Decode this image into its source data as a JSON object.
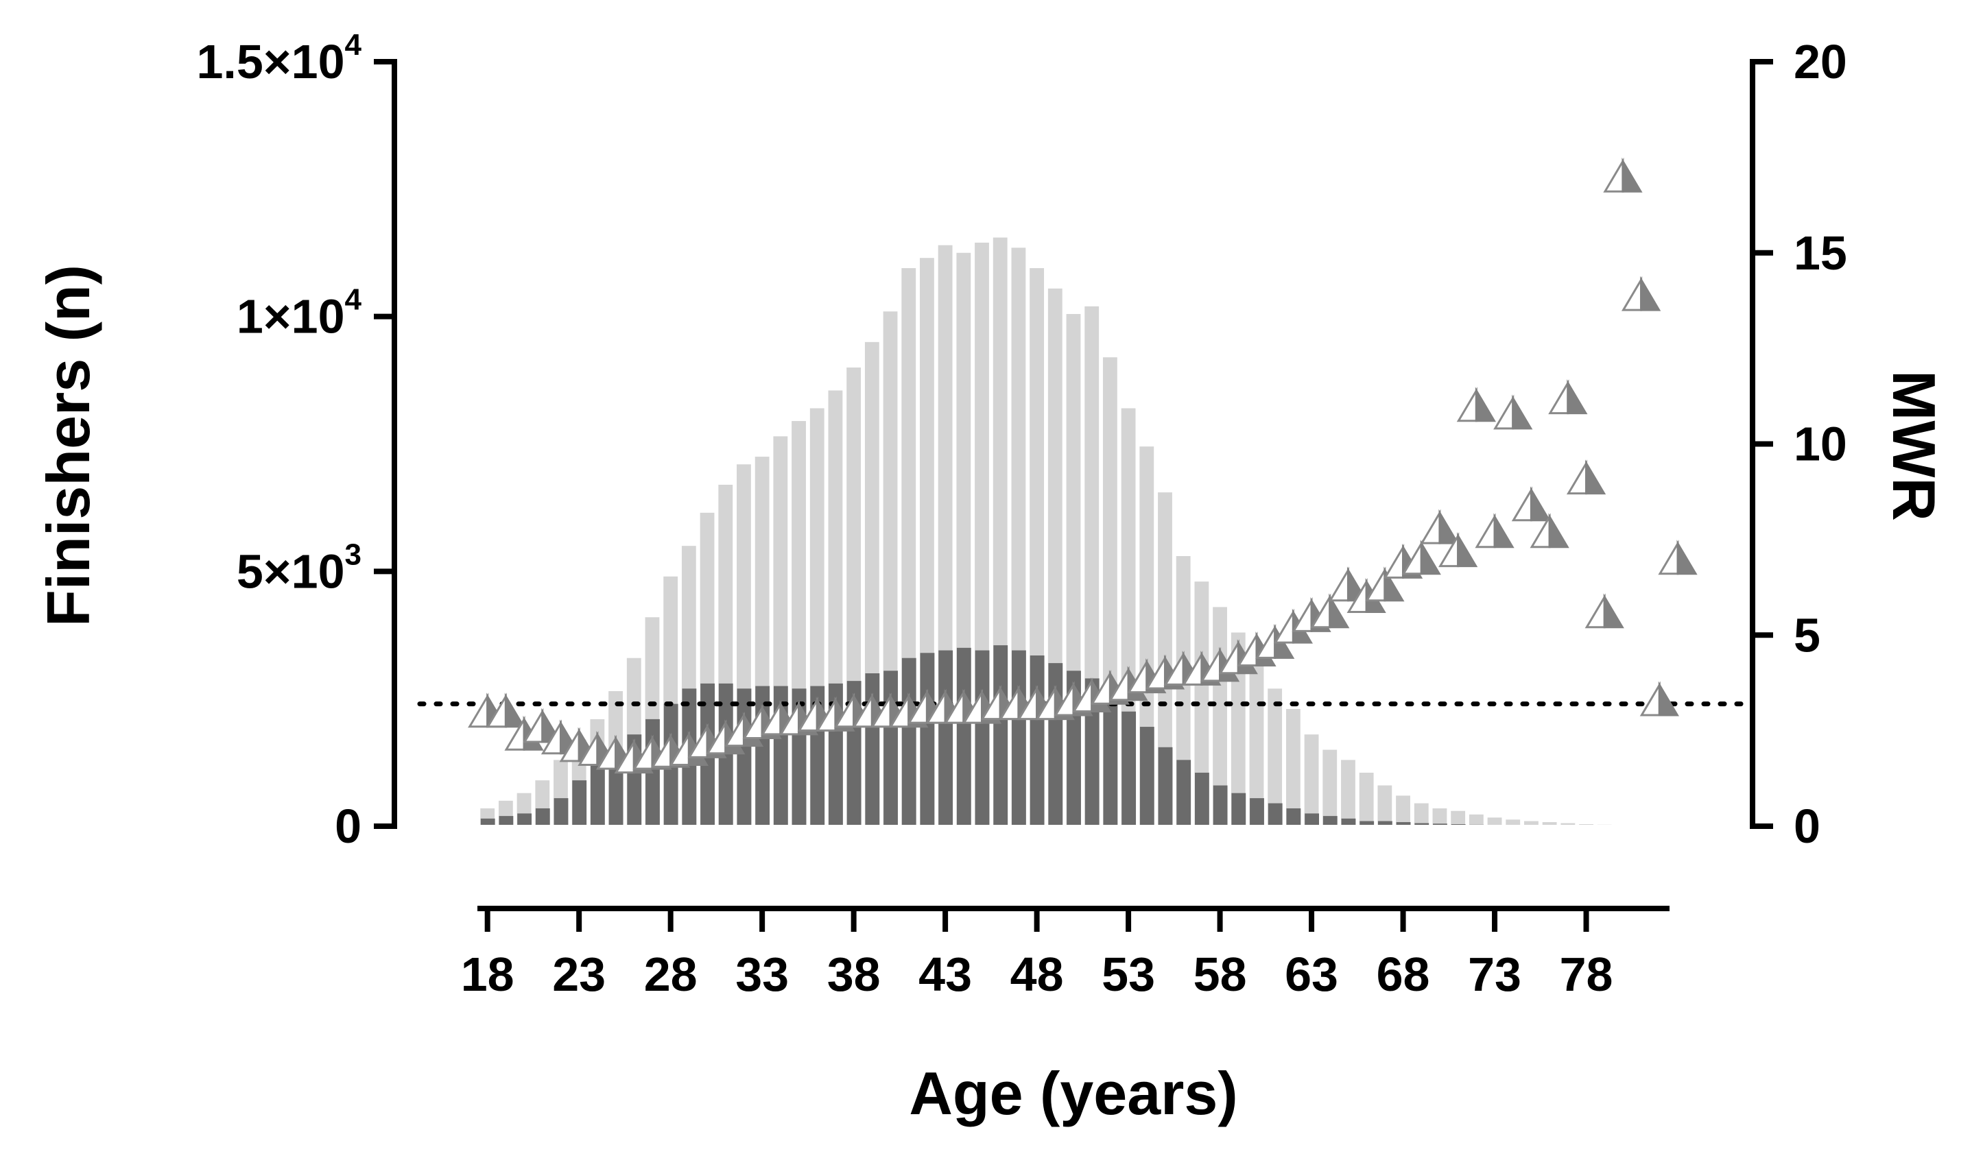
{
  "chart_data": {
    "type": "bar",
    "x": [
      18,
      19,
      20,
      21,
      22,
      23,
      24,
      25,
      26,
      27,
      28,
      29,
      30,
      31,
      32,
      33,
      34,
      35,
      36,
      37,
      38,
      39,
      40,
      41,
      42,
      43,
      44,
      45,
      46,
      47,
      48,
      49,
      50,
      51,
      52,
      53,
      54,
      55,
      56,
      57,
      58,
      59,
      60,
      61,
      62,
      63,
      64,
      65,
      66,
      67,
      68,
      69,
      70,
      71,
      72,
      73,
      74,
      75,
      76,
      77,
      78,
      79,
      80,
      81,
      82
    ],
    "xlabel": "Age (years)",
    "x_tick_labels": [
      "18",
      "23",
      "28",
      "33",
      "38",
      "43",
      "48",
      "53",
      "58",
      "63",
      "68",
      "73",
      "78"
    ],
    "x_tick_values": [
      18,
      23,
      28,
      33,
      38,
      43,
      48,
      53,
      58,
      63,
      68,
      73,
      78
    ],
    "xlim": [
      17.6,
      82.4
    ],
    "ylabel_left": "Finishers (n)",
    "ylim_left": [
      0,
      15000
    ],
    "y_ticks_left": [
      {
        "value": 0,
        "mantissa": "0",
        "exponent": ""
      },
      {
        "value": 5000,
        "mantissa": "5×10",
        "exponent": "3"
      },
      {
        "value": 10000,
        "mantissa": "1×10",
        "exponent": "4"
      },
      {
        "value": 15000,
        "mantissa": "1.5×10",
        "exponent": "4"
      }
    ],
    "ylabel_right": "MWR",
    "ylim_right": [
      0,
      20
    ],
    "y_ticks_right": [
      "0",
      "5",
      "10",
      "15",
      "20"
    ],
    "reference_line_mwr": 3.2,
    "series": [
      {
        "axis": "left",
        "color": "#d4d4d4",
        "values": [
          350,
          500,
          650,
          900,
          1300,
          1700,
          2100,
          2650,
          3300,
          4100,
          4900,
          5500,
          6150,
          6700,
          7100,
          7250,
          7650,
          7950,
          8200,
          8550,
          9000,
          9500,
          10100,
          10950,
          11150,
          11400,
          11250,
          11450,
          11550,
          11350,
          10950,
          10550,
          10050,
          10200,
          9200,
          8200,
          7450,
          6550,
          5300,
          4800,
          4300,
          3800,
          3350,
          2700,
          2300,
          1800,
          1500,
          1300,
          1050,
          800,
          600,
          450,
          350,
          300,
          230,
          170,
          130,
          100,
          80,
          60,
          40,
          30,
          20,
          10,
          10
        ],
        "mark": "wide"
      },
      {
        "axis": "left",
        "color": "#6b6b6b",
        "values": [
          150,
          200,
          250,
          350,
          550,
          900,
          1250,
          1450,
          1800,
          2100,
          2400,
          2700,
          2800,
          2800,
          2700,
          2750,
          2750,
          2700,
          2750,
          2800,
          2850,
          3000,
          3050,
          3300,
          3400,
          3450,
          3500,
          3450,
          3550,
          3450,
          3350,
          3200,
          3050,
          2900,
          2550,
          2250,
          1950,
          1550,
          1300,
          1050,
          800,
          650,
          550,
          450,
          350,
          250,
          200,
          150,
          100,
          100,
          80,
          60,
          50,
          40,
          30,
          20,
          20,
          15,
          10,
          10,
          8,
          5,
          5,
          3,
          3
        ],
        "mark": "narrow"
      },
      {
        "axis": "right",
        "type": "scatter",
        "marker": "half-shaded-triangle",
        "points": [
          [
            18,
            3.0
          ],
          [
            19,
            3.0
          ],
          [
            20,
            2.4
          ],
          [
            21,
            2.6
          ],
          [
            22,
            2.3
          ],
          [
            23,
            2.1
          ],
          [
            24,
            2.0
          ],
          [
            25,
            1.9
          ],
          [
            26,
            1.8
          ],
          [
            27,
            1.9
          ],
          [
            28,
            1.95
          ],
          [
            29,
            2.0
          ],
          [
            30,
            2.2
          ],
          [
            31,
            2.3
          ],
          [
            32,
            2.5
          ],
          [
            33,
            2.7
          ],
          [
            34,
            2.8
          ],
          [
            35,
            2.8
          ],
          [
            36,
            2.9
          ],
          [
            37,
            2.9
          ],
          [
            38,
            3.0
          ],
          [
            39,
            3.0
          ],
          [
            40,
            3.0
          ],
          [
            41,
            3.0
          ],
          [
            42,
            3.1
          ],
          [
            43,
            3.1
          ],
          [
            44,
            3.1
          ],
          [
            45,
            3.1
          ],
          [
            46,
            3.2
          ],
          [
            47,
            3.2
          ],
          [
            48,
            3.2
          ],
          [
            49,
            3.2
          ],
          [
            50,
            3.3
          ],
          [
            51,
            3.4
          ],
          [
            52,
            3.6
          ],
          [
            53,
            3.7
          ],
          [
            54,
            3.9
          ],
          [
            55,
            4.0
          ],
          [
            56,
            4.1
          ],
          [
            57,
            4.1
          ],
          [
            58,
            4.2
          ],
          [
            59,
            4.4
          ],
          [
            60,
            4.6
          ],
          [
            61,
            4.8
          ],
          [
            62,
            5.2
          ],
          [
            63,
            5.5
          ],
          [
            64,
            5.6
          ],
          [
            65,
            6.3
          ],
          [
            66,
            6.0
          ],
          [
            67,
            6.3
          ],
          [
            68,
            6.9
          ],
          [
            69,
            7.0
          ],
          [
            70,
            7.8
          ],
          [
            71,
            7.2
          ],
          [
            72,
            11.0
          ],
          [
            73,
            7.7
          ],
          [
            74,
            10.8
          ],
          [
            75,
            8.4
          ],
          [
            76,
            7.7
          ],
          [
            77,
            11.2
          ],
          [
            78,
            9.1
          ],
          [
            79,
            5.6
          ],
          [
            80,
            17.0
          ],
          [
            81,
            13.9
          ],
          [
            82,
            3.3
          ],
          [
            83,
            7.0
          ]
        ]
      }
    ]
  }
}
